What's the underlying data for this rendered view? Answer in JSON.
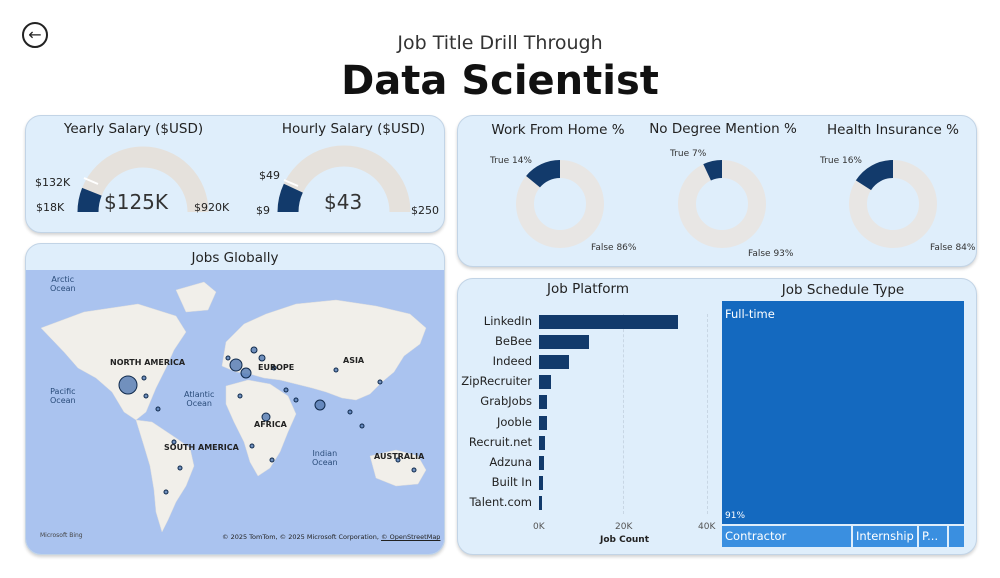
{
  "header": {
    "back_icon": "arrow-left-icon",
    "subtitle": "Job Title Drill Through",
    "title": "Data Scientist"
  },
  "salary": {
    "yearly": {
      "title": "Yearly Salary ($USD)",
      "value": "$125K",
      "min": "$18K",
      "max": "$920K",
      "target": "$132K",
      "fill_fraction": 0.12
    },
    "hourly": {
      "title": "Hourly Salary ($USD)",
      "value": "$43",
      "min": "$9",
      "max": "$250",
      "target": "$49",
      "fill_fraction": 0.14
    }
  },
  "donuts": [
    {
      "title": "Work From Home %",
      "true_label": "True 14%",
      "false_label": "False 86%",
      "true_fraction": 0.14
    },
    {
      "title": "No Degree Mention %",
      "true_label": "True 7%",
      "false_label": "False 93%",
      "true_fraction": 0.07
    },
    {
      "title": "Health Insurance %",
      "true_label": "True 16%",
      "false_label": "False 84%",
      "true_fraction": 0.16
    }
  ],
  "map": {
    "title": "Jobs Globally",
    "labels": {
      "arctic": [
        "Arctic",
        "Ocean"
      ],
      "pacific": [
        "Pacific",
        "Ocean"
      ],
      "atlantic": [
        "Atlantic",
        "Ocean"
      ],
      "indian": [
        "Indian",
        "Ocean"
      ],
      "north_america": "NORTH AMERICA",
      "south_america": "SOUTH AMERICA",
      "europe": "EUROPE",
      "asia": "ASIA",
      "africa": "AFRICA",
      "australia": "AUSTRALIA"
    },
    "bing": "Microsoft Bing",
    "copyright": "© 2025 TomTom, © 2025 Microsoft Corporation,",
    "osm_link": "© OpenStreetMap"
  },
  "job_platform": {
    "title": "Job Platform",
    "xlabel": "Job Count",
    "ticks": [
      "0K",
      "20K",
      "40K"
    ]
  },
  "job_schedule": {
    "title": "Job Schedule Type",
    "main_label": "Full-time",
    "main_pct": "91%",
    "small": [
      "Contractor",
      "Internship",
      "P..."
    ]
  },
  "chart_data": {
    "type": "bar",
    "title": "Job Platform",
    "xlabel": "Job Count",
    "ylabel": "",
    "categories": [
      "LinkedIn",
      "BeBee",
      "Indeed",
      "ZipRecruiter",
      "GrabJobs",
      "Jooble",
      "Recruit.net",
      "Adzuna",
      "Built In",
      "Talent.com"
    ],
    "values": [
      33000,
      12000,
      7200,
      2800,
      2000,
      1900,
      1500,
      1200,
      900,
      800
    ],
    "xlim": [
      0,
      40000
    ]
  }
}
